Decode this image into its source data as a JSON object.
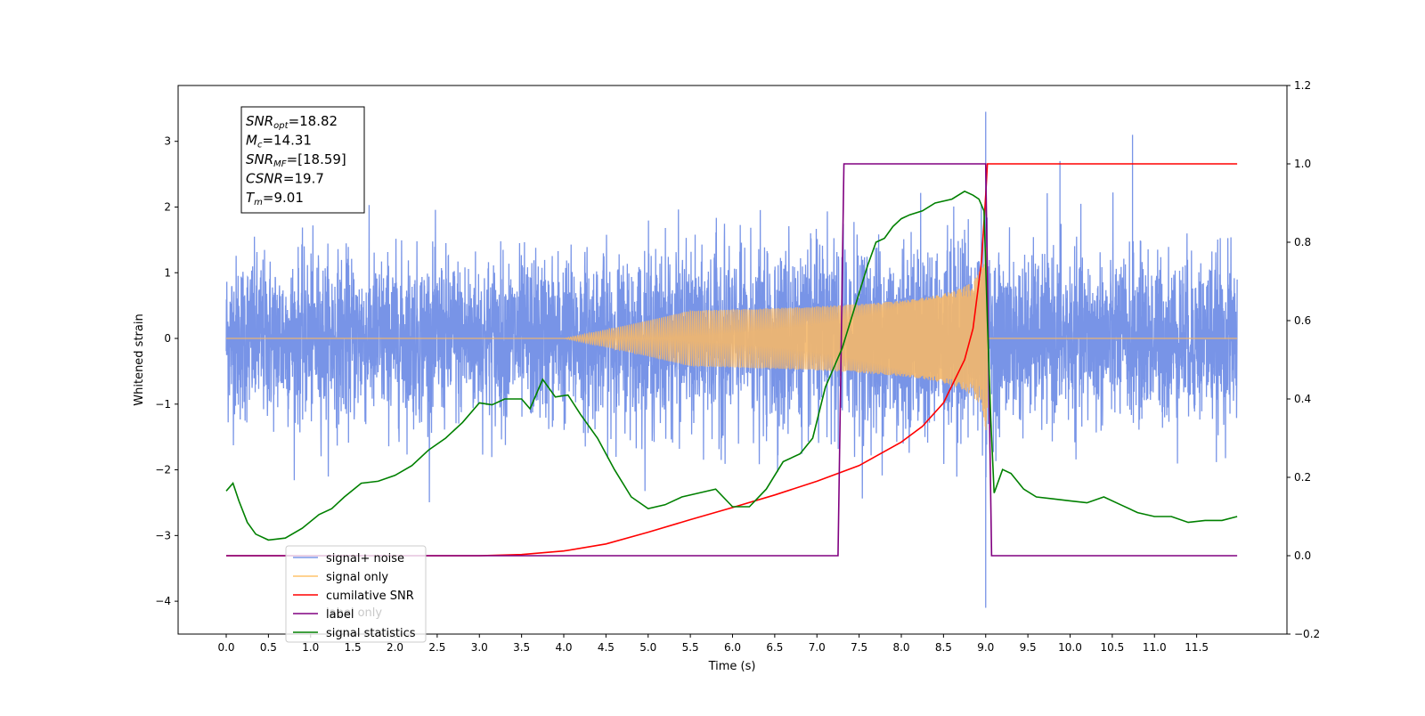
{
  "chart_data": {
    "type": "line",
    "xlabel": "Time (s)",
    "ylabel": "Whitened strain",
    "xlim": [
      -0.57,
      12.57
    ],
    "ylim_left": [
      -4.5,
      3.85
    ],
    "ylim_right": [
      -0.2,
      1.2
    ],
    "x_ticks": [
      "0.0",
      "0.5",
      "1.0",
      "1.5",
      "2.0",
      "2.5",
      "3.0",
      "3.5",
      "4.0",
      "4.5",
      "5.0",
      "5.5",
      "6.0",
      "6.5",
      "7.0",
      "7.5",
      "8.0",
      "8.5",
      "9.0",
      "9.5",
      "10.0",
      "10.5",
      "11.0",
      "11.5"
    ],
    "y_ticks_left": [
      "3",
      "2",
      "1",
      "0",
      "−1",
      "−2",
      "−3",
      "−4"
    ],
    "y_ticks_right": [
      "1.2",
      "1.0",
      "0.8",
      "0.6",
      "0.4",
      "0.2",
      "0.0",
      "−0.2"
    ],
    "legend": {
      "placement": "lower-left",
      "entries": [
        {
          "label": "signal+ noise",
          "color": "#7b97e9"
        },
        {
          "label": "signal only",
          "color": "#ffc36b"
        },
        {
          "label": "cumilative SNR",
          "color": "#ff0000"
        },
        {
          "label": "label",
          "color": "#800080"
        },
        {
          "label": "signal statistics",
          "color": "#008000"
        }
      ],
      "ghost_text": "label only"
    },
    "annotation": [
      {
        "sym": "SNR",
        "sub": "opt",
        "value": "=18.82"
      },
      {
        "sym": "M",
        "sub": "c",
        "value": "=14.31"
      },
      {
        "sym": "SNR",
        "sub": "MF",
        "value": "=[18.59]"
      },
      {
        "sym": "CSNR",
        "sub": "",
        "value": "=19.7"
      },
      {
        "sym": "T",
        "sub": "m",
        "value": "=9.01"
      }
    ],
    "series": [
      {
        "name": "signal+ noise",
        "axis": "left",
        "color": "#6c8be5",
        "description_params": {
          "x_start": 0.0,
          "x_end": 11.98,
          "noise_envelope": 1.3,
          "spikes": [
            [
              9.0,
              3.45
            ],
            [
              9.0,
              -4.1
            ],
            [
              10.74,
              3.1
            ],
            [
              9.88,
              2.7
            ]
          ]
        }
      },
      {
        "name": "signal only",
        "axis": "left",
        "color": "#f4b76a",
        "chirp": {
          "start": 4.5,
          "merger": 9.0,
          "peak_amplitude": 1.4
        }
      },
      {
        "name": "cumilative SNR",
        "axis": "right",
        "color": "#ff0000",
        "x": [
          0.0,
          3.0,
          3.5,
          4.0,
          4.5,
          5.0,
          5.5,
          6.0,
          6.5,
          7.0,
          7.5,
          8.0,
          8.25,
          8.5,
          8.75,
          8.85,
          8.95,
          9.0,
          9.02,
          9.05,
          11.98
        ],
        "y": [
          0.0,
          0.0,
          0.003,
          0.012,
          0.03,
          0.06,
          0.092,
          0.123,
          0.155,
          0.19,
          0.23,
          0.29,
          0.33,
          0.39,
          0.5,
          0.58,
          0.75,
          0.92,
          1.0,
          1.0,
          1.0
        ]
      },
      {
        "name": "label",
        "axis": "right",
        "color": "#800080",
        "x": [
          0.0,
          7.25,
          7.32,
          9.0,
          9.07,
          11.98
        ],
        "y": [
          0.0,
          0.0,
          1.0,
          1.0,
          0.0,
          0.0
        ]
      },
      {
        "name": "signal statistics",
        "axis": "right",
        "color": "#008000",
        "x": [
          0.0,
          0.08,
          0.15,
          0.25,
          0.35,
          0.5,
          0.7,
          0.9,
          1.1,
          1.25,
          1.4,
          1.6,
          1.8,
          2.0,
          2.2,
          2.4,
          2.6,
          2.8,
          3.0,
          3.15,
          3.3,
          3.5,
          3.6,
          3.75,
          3.9,
          4.05,
          4.2,
          4.4,
          4.6,
          4.8,
          5.0,
          5.2,
          5.4,
          5.6,
          5.8,
          6.0,
          6.2,
          6.4,
          6.6,
          6.8,
          6.95,
          7.1,
          7.2,
          7.3,
          7.4,
          7.5,
          7.6,
          7.7,
          7.8,
          7.9,
          8.0,
          8.1,
          8.25,
          8.4,
          8.6,
          8.75,
          8.85,
          8.92,
          8.98,
          9.02,
          9.06,
          9.1,
          9.2,
          9.3,
          9.45,
          9.6,
          9.8,
          10.0,
          10.2,
          10.4,
          10.6,
          10.8,
          11.0,
          11.2,
          11.4,
          11.6,
          11.8,
          11.98
        ],
        "y": [
          0.165,
          0.185,
          0.14,
          0.085,
          0.055,
          0.04,
          0.045,
          0.07,
          0.105,
          0.12,
          0.15,
          0.185,
          0.19,
          0.205,
          0.23,
          0.27,
          0.3,
          0.34,
          0.39,
          0.385,
          0.4,
          0.4,
          0.375,
          0.45,
          0.405,
          0.41,
          0.36,
          0.3,
          0.22,
          0.15,
          0.12,
          0.13,
          0.15,
          0.16,
          0.17,
          0.125,
          0.125,
          0.17,
          0.24,
          0.26,
          0.3,
          0.43,
          0.48,
          0.53,
          0.6,
          0.67,
          0.74,
          0.8,
          0.81,
          0.84,
          0.86,
          0.87,
          0.88,
          0.9,
          0.91,
          0.93,
          0.92,
          0.91,
          0.88,
          0.6,
          0.35,
          0.16,
          0.22,
          0.21,
          0.17,
          0.15,
          0.145,
          0.14,
          0.135,
          0.15,
          0.13,
          0.11,
          0.1,
          0.1,
          0.085,
          0.09,
          0.09,
          0.1
        ]
      }
    ]
  }
}
